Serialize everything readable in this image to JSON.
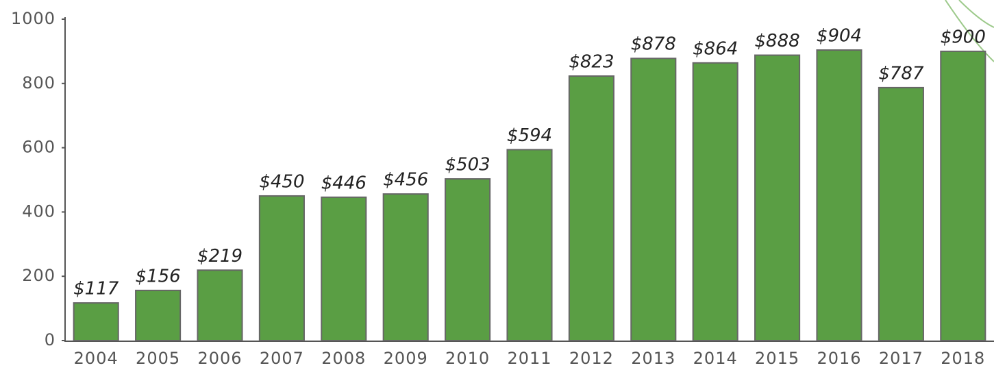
{
  "chart_data": {
    "type": "bar",
    "categories": [
      "2004",
      "2005",
      "2006",
      "2007",
      "2008",
      "2009",
      "2010",
      "2011",
      "2012",
      "2013",
      "2014",
      "2015",
      "2016",
      "2017",
      "2018"
    ],
    "values": [
      117,
      156,
      219,
      450,
      446,
      456,
      503,
      594,
      823,
      878,
      864,
      888,
      904,
      787,
      900
    ],
    "value_labels": [
      "$117",
      "$156",
      "$219",
      "$450",
      "$446",
      "$456",
      "$503",
      "$594",
      "$823",
      "$878",
      "$864",
      "$888",
      "$904",
      "$787",
      "$900"
    ],
    "color": "#5a9e44",
    "ylim": [
      0,
      1000
    ],
    "yticks": [
      0,
      200,
      400,
      600,
      800,
      1000
    ],
    "grid": false
  }
}
